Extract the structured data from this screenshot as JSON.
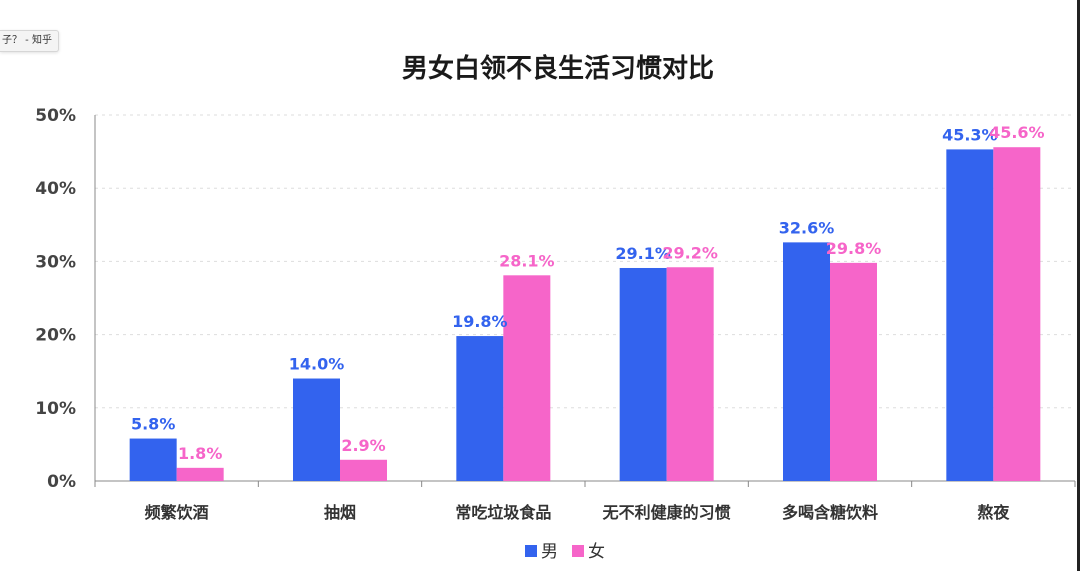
{
  "browser_tab": {
    "label": "子？ - 知乎"
  },
  "colors": {
    "male": "#3363ee",
    "female": "#f665c9",
    "axis": "#888888",
    "grid": "#dddddd"
  },
  "chart_data": {
    "type": "bar",
    "title": "男女白领不良生活习惯对比",
    "xlabel": "",
    "ylabel": "",
    "ylim": [
      0,
      50
    ],
    "y_ticks": [
      "0%",
      "10%",
      "20%",
      "30%",
      "40%",
      "50%"
    ],
    "y_tick_values": [
      0,
      10,
      20,
      30,
      40,
      50
    ],
    "grid": true,
    "legend_position": "bottom",
    "categories": [
      "频繁饮酒",
      "抽烟",
      "常吃垃圾食品",
      "无不利健康的习惯",
      "多喝含糖饮料",
      "熬夜"
    ],
    "series": [
      {
        "name": "男",
        "values": [
          5.8,
          14.0,
          19.8,
          29.1,
          32.6,
          45.3
        ],
        "labels": [
          "5.8%",
          "14.0%",
          "19.8%",
          "29.1%",
          "32.6%",
          "45.3%"
        ]
      },
      {
        "name": "女",
        "values": [
          1.8,
          2.9,
          28.1,
          29.2,
          29.8,
          45.6
        ],
        "labels": [
          "1.8%",
          "2.9%",
          "28.1%",
          "29.2%",
          "29.8%",
          "45.6%"
        ]
      }
    ]
  }
}
